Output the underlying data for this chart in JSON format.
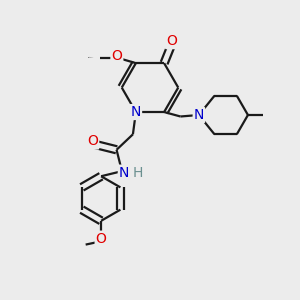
{
  "background_color": "#ececec",
  "bond_color": "#1a1a1a",
  "bond_width": 1.6,
  "atom_colors": {
    "O": "#e00000",
    "N": "#0000cc",
    "H": "#6b9090",
    "C": "#1a1a1a"
  },
  "font_size_atom": 10,
  "font_size_small": 8.5
}
